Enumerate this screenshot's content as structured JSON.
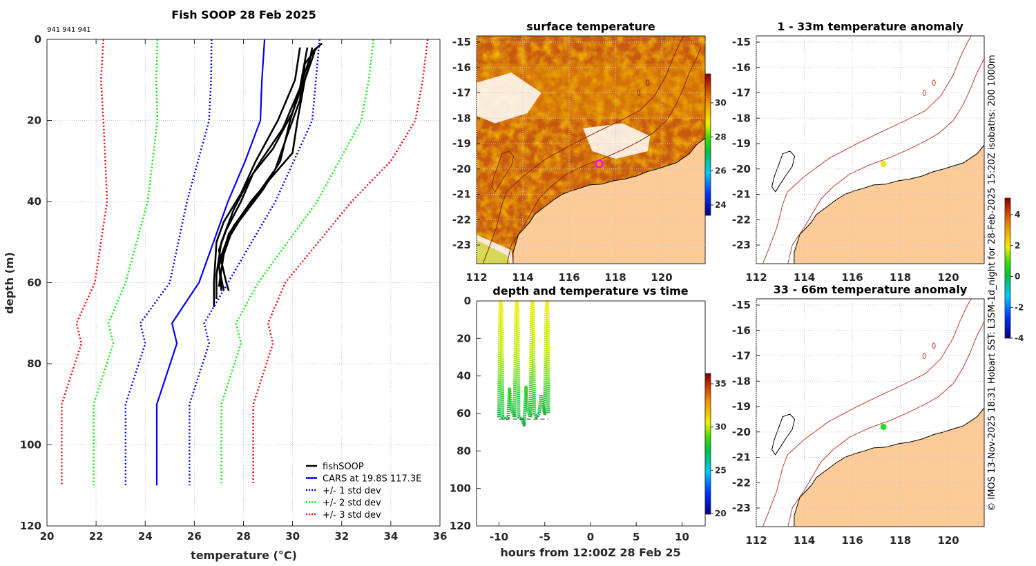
{
  "title": "Fish SOOP 28 Feb 2025",
  "ids_label": "941 941 941",
  "copyright": "© IMOS 13-Nov-2025 18:31 Hobart SST: L3SM-1d_night for 28-Feb-2025 15:20Z isobaths: 200  1000m",
  "colors": {
    "fish": "#000000",
    "cars": "#0000ff",
    "std1": "#0000ff",
    "std2": "#00ee00",
    "std3": "#ff0000",
    "land": "#fccb98",
    "isobath": "#c0392b"
  },
  "chart_data": [
    {
      "type": "line",
      "id": "profile",
      "title": "Fish SOOP 28 Feb 2025",
      "xlabel": "temperature (°C)",
      "ylabel": "depth (m)",
      "xlim": [
        20,
        36
      ],
      "ylim": [
        0,
        120
      ],
      "y_reversed": true,
      "grid": true,
      "xticks": [
        "20",
        "22",
        "24",
        "26",
        "28",
        "30",
        "32",
        "34",
        "36"
      ],
      "yticks": [
        "0",
        "20",
        "40",
        "60",
        "80",
        "100",
        "120"
      ],
      "legend_position": "bottom-right",
      "legend": [
        "fishSOOP",
        "CARS at 19.8S 117.3E",
        "+/- 1 std dev",
        "+/- 2 std dev",
        "+/- 3 std dev"
      ],
      "series": [
        {
          "name": "fishSOOP",
          "color": "#000000",
          "style": "solid",
          "profiles": [
            [
              [
                31.2,
                1
              ],
              [
                30.8,
                3
              ],
              [
                30.4,
                10
              ],
              [
                29.9,
                20
              ],
              [
                29.5,
                30
              ],
              [
                28.8,
                37
              ],
              [
                27.8,
                45
              ],
              [
                27.3,
                50
              ],
              [
                27.0,
                55
              ],
              [
                27.1,
                62
              ]
            ],
            [
              [
                30.3,
                2
              ],
              [
                30.1,
                10
              ],
              [
                29.4,
                20
              ],
              [
                28.5,
                30
              ],
              [
                27.9,
                38
              ],
              [
                27.2,
                45
              ],
              [
                26.9,
                50
              ],
              [
                26.8,
                60
              ],
              [
                26.8,
                66
              ]
            ],
            [
              [
                30.9,
                3
              ],
              [
                30.5,
                10
              ],
              [
                30.2,
                20
              ],
              [
                30.0,
                28
              ],
              [
                29.0,
                35
              ],
              [
                28.3,
                40
              ],
              [
                27.4,
                48
              ],
              [
                27.0,
                56
              ],
              [
                27.2,
                62
              ]
            ],
            [
              [
                30.6,
                2
              ],
              [
                30.3,
                12
              ],
              [
                29.6,
                22
              ],
              [
                28.7,
                30
              ],
              [
                28.2,
                35
              ],
              [
                27.6,
                42
              ],
              [
                27.1,
                50
              ],
              [
                26.9,
                58
              ],
              [
                26.9,
                64
              ]
            ],
            [
              [
                30.8,
                2
              ],
              [
                30.6,
                8
              ],
              [
                30.0,
                18
              ],
              [
                29.2,
                27
              ],
              [
                28.4,
                33
              ],
              [
                27.9,
                40
              ],
              [
                27.3,
                47
              ],
              [
                27.0,
                52
              ],
              [
                27.3,
                60
              ],
              [
                27.4,
                62
              ]
            ],
            [
              [
                31.0,
                2
              ],
              [
                30.5,
                6
              ],
              [
                30.3,
                15
              ],
              [
                29.7,
                25
              ],
              [
                29.3,
                32
              ],
              [
                28.6,
                38
              ],
              [
                27.6,
                46
              ],
              [
                27.2,
                53
              ],
              [
                27.0,
                61
              ]
            ]
          ]
        },
        {
          "name": "CARS mean",
          "color": "#0000ff",
          "style": "solid",
          "points": [
            [
              28.86,
              0
            ],
            [
              28.75,
              10
            ],
            [
              28.69,
              20
            ],
            [
              28.07,
              30
            ],
            [
              27.37,
              40
            ],
            [
              26.19,
              60
            ],
            [
              25.09,
              70
            ],
            [
              25.29,
              75
            ],
            [
              24.47,
              90
            ],
            [
              24.47,
              110
            ]
          ]
        },
        {
          "name": "-1 std",
          "color": "#0000ff",
          "style": "dotted",
          "points": [
            [
              26.7,
              0
            ],
            [
              26.68,
              10
            ],
            [
              26.6,
              20
            ],
            [
              25.7,
              40
            ],
            [
              25.0,
              60
            ],
            [
              23.8,
              70
            ],
            [
              24.0,
              75
            ],
            [
              23.2,
              90
            ],
            [
              23.2,
              110
            ]
          ]
        },
        {
          "name": "+1 std",
          "color": "#0000ff",
          "style": "dotted",
          "points": [
            [
              31.1,
              0
            ],
            [
              30.95,
              10
            ],
            [
              30.8,
              20
            ],
            [
              29.3,
              40
            ],
            [
              27.37,
              60
            ],
            [
              26.4,
              70
            ],
            [
              26.6,
              75
            ],
            [
              25.8,
              90
            ],
            [
              25.8,
              110
            ]
          ]
        },
        {
          "name": "-2 std",
          "color": "#00ee00",
          "style": "dotted",
          "points": [
            [
              24.5,
              0
            ],
            [
              24.45,
              10
            ],
            [
              24.5,
              20
            ],
            [
              24.1,
              40
            ],
            [
              23.2,
              60
            ],
            [
              22.5,
              70
            ],
            [
              22.7,
              75
            ],
            [
              21.9,
              90
            ],
            [
              21.9,
              110
            ]
          ]
        },
        {
          "name": "+2 std",
          "color": "#00ee00",
          "style": "dotted",
          "points": [
            [
              33.3,
              0
            ],
            [
              33.1,
              10
            ],
            [
              32.8,
              20
            ],
            [
              31.0,
              40
            ],
            [
              28.6,
              60
            ],
            [
              27.7,
              70
            ],
            [
              27.9,
              75
            ],
            [
              27.1,
              90
            ],
            [
              27.1,
              110
            ]
          ]
        },
        {
          "name": "-3 std",
          "color": "#ff0000",
          "style": "dotted",
          "points": [
            [
              22.3,
              0
            ],
            [
              22.2,
              10
            ],
            [
              22.3,
              20
            ],
            [
              22.45,
              40
            ],
            [
              21.95,
              60
            ],
            [
              21.2,
              70
            ],
            [
              21.4,
              75
            ],
            [
              20.6,
              90
            ],
            [
              20.6,
              110
            ]
          ]
        },
        {
          "name": "+3 std",
          "color": "#ff0000",
          "style": "dotted",
          "points": [
            [
              35.5,
              0
            ],
            [
              35.3,
              10
            ],
            [
              35.0,
              20
            ],
            [
              34.0,
              30
            ],
            [
              32.4,
              40
            ],
            [
              29.7,
              60
            ],
            [
              29.0,
              70
            ],
            [
              29.2,
              75
            ],
            [
              28.4,
              90
            ],
            [
              28.4,
              110
            ]
          ]
        }
      ]
    },
    {
      "type": "heatmap",
      "id": "surface",
      "title": "surface temperature",
      "xticks": [
        "112",
        "114",
        "116",
        "118",
        "120"
      ],
      "yticks": [
        "-15",
        "-16",
        "-17",
        "-18",
        "-19",
        "-20",
        "-21",
        "-22",
        "-23"
      ],
      "colorbar_ticks": [
        "30",
        "28",
        "26",
        "24"
      ],
      "marker": {
        "lon": 117.3,
        "lat": -19.8,
        "color": "#ff00ff"
      }
    },
    {
      "type": "scatter",
      "id": "timeseries",
      "title": "depth and temperature vs time",
      "xlabel": "hours from 12:00Z 28 Feb 25",
      "xlim": [
        -12.5,
        12.5
      ],
      "ylim": [
        0,
        120
      ],
      "xticks": [
        "-10",
        "-5",
        "0",
        "5",
        "10"
      ],
      "yticks": [
        "0",
        "20",
        "40",
        "60",
        "80",
        "100",
        "120"
      ],
      "colorbar_ticks": [
        "35",
        "30",
        "25",
        "20"
      ],
      "track": [
        [
          -10.0,
          62
        ],
        [
          -9.9,
          5
        ],
        [
          -9.8,
          0
        ],
        [
          -9.7,
          5
        ],
        [
          -9.6,
          62
        ],
        [
          -9.3,
          63
        ],
        [
          -9.0,
          62
        ],
        [
          -8.85,
          47
        ],
        [
          -8.6,
          58
        ],
        [
          -8.3,
          62
        ],
        [
          -8.15,
          5
        ],
        [
          -8.05,
          0
        ],
        [
          -7.95,
          5
        ],
        [
          -7.85,
          62
        ],
        [
          -7.5,
          63
        ],
        [
          -7.25,
          66
        ],
        [
          -7.05,
          46
        ],
        [
          -6.85,
          58
        ],
        [
          -6.55,
          62
        ],
        [
          -6.45,
          5
        ],
        [
          -6.35,
          0
        ],
        [
          -6.25,
          5
        ],
        [
          -6.15,
          60
        ],
        [
          -5.9,
          62
        ],
        [
          -5.6,
          60
        ],
        [
          -5.4,
          50
        ],
        [
          -5.2,
          56
        ],
        [
          -5.0,
          60
        ],
        [
          -4.85,
          5
        ],
        [
          -4.75,
          0
        ],
        [
          -4.65,
          5
        ],
        [
          -4.6,
          60
        ]
      ]
    },
    {
      "type": "heatmap",
      "id": "anomaly-shallow",
      "title": "1 - 33m temperature anomaly",
      "xticks": [
        "112",
        "114",
        "116",
        "118",
        "120"
      ],
      "yticks": [
        "-15",
        "-16",
        "-17",
        "-18",
        "-19",
        "-20",
        "-21",
        "-22",
        "-23"
      ],
      "point": {
        "lon": 117.3,
        "lat": -19.8,
        "anomaly": 2.3,
        "color": "#dcef10"
      },
      "colorbar_ticks": [
        "4",
        "2",
        "0",
        "-2",
        "-4"
      ]
    },
    {
      "type": "heatmap",
      "id": "anomaly-deep",
      "title": "33 - 66m temperature anomaly",
      "xticks": [
        "112",
        "114",
        "116",
        "118",
        "120"
      ],
      "yticks": [
        "-15",
        "-16",
        "-17",
        "-18",
        "-19",
        "-20",
        "-21",
        "-22",
        "-23"
      ],
      "point": {
        "lon": 117.3,
        "lat": -19.8,
        "anomaly": 0.5,
        "color": "#22dd22"
      }
    }
  ]
}
